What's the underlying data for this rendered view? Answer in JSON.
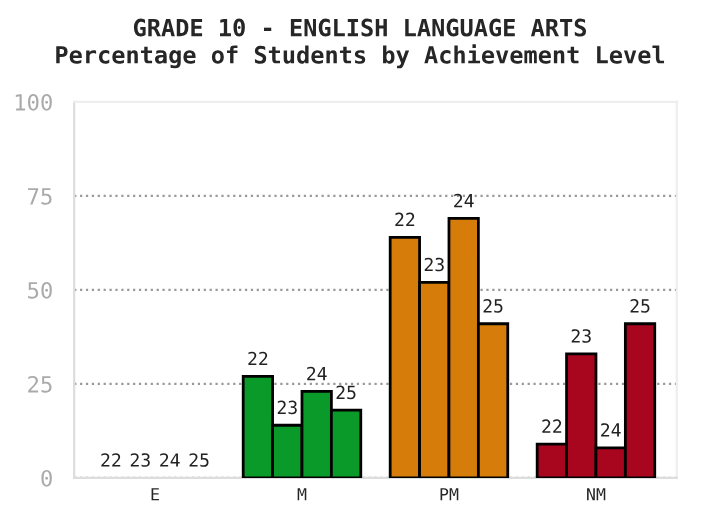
{
  "chart_data": {
    "type": "bar",
    "title": "GRADE 10 - ENGLISH LANGUAGE ARTS",
    "subtitle": "Percentage of Students by Achievement Level",
    "categories": [
      "E",
      "M",
      "PM",
      "NM"
    ],
    "series": [
      {
        "name": "22",
        "colors": [
          "#3366cc",
          "#0a9a2a",
          "#d67c0a",
          "#a8061e"
        ],
        "values": [
          0,
          27,
          64,
          9
        ]
      },
      {
        "name": "23",
        "colors": [
          "#3366cc",
          "#0a9a2a",
          "#d67c0a",
          "#a8061e"
        ],
        "values": [
          0,
          14,
          52,
          33
        ]
      },
      {
        "name": "24",
        "colors": [
          "#3366cc",
          "#0a9a2a",
          "#d67c0a",
          "#a8061e"
        ],
        "values": [
          0,
          23,
          69,
          8
        ]
      },
      {
        "name": "25",
        "colors": [
          "#3366cc",
          "#0a9a2a",
          "#d67c0a",
          "#a8061e"
        ],
        "values": [
          0,
          18,
          41,
          41
        ]
      }
    ],
    "ylim": [
      0,
      100
    ],
    "yticks": [
      0,
      25,
      50,
      75,
      100
    ],
    "grid": "y",
    "legend": false
  }
}
